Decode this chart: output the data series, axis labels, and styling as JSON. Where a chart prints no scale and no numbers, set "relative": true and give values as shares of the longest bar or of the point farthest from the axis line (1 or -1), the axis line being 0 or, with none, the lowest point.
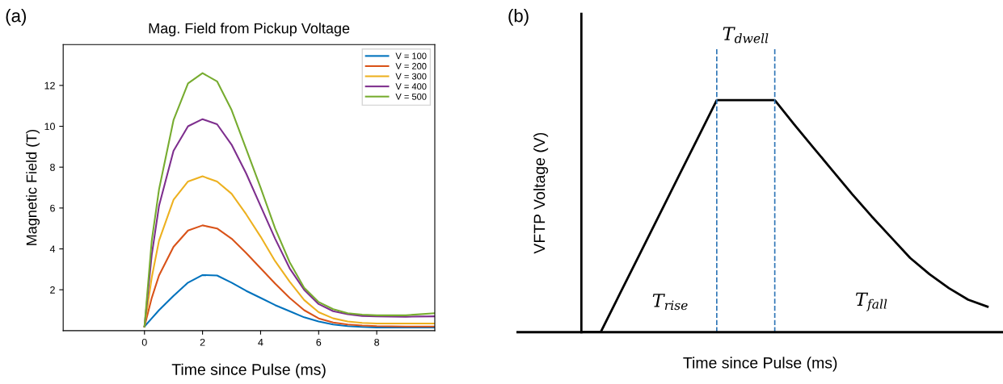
{
  "chart_data": [
    {
      "type": "line",
      "title": "Mag. Field from Pickup Voltage",
      "xlabel": "Time since Pulse (ms)",
      "ylabel": "Magnetic Field (T)",
      "x": [
        0,
        0.25,
        0.5,
        1,
        1.5,
        2,
        2.5,
        3,
        3.5,
        4,
        4.5,
        5,
        5.5,
        6,
        6.5,
        7,
        7.5,
        8,
        9,
        10
      ],
      "series": [
        {
          "name": "V = 100",
          "color": "#0072bd",
          "values": [
            0.2,
            0.6,
            1.0,
            1.7,
            2.35,
            2.72,
            2.7,
            2.35,
            1.95,
            1.6,
            1.25,
            0.95,
            0.65,
            0.45,
            0.3,
            0.22,
            0.18,
            0.15,
            0.15,
            0.15
          ]
        },
        {
          "name": "V = 200",
          "color": "#d95319",
          "values": [
            0.2,
            1.6,
            2.7,
            4.1,
            4.9,
            5.15,
            5.0,
            4.5,
            3.8,
            3.05,
            2.3,
            1.6,
            1.0,
            0.6,
            0.4,
            0.3,
            0.25,
            0.22,
            0.2,
            0.2
          ]
        },
        {
          "name": "V = 300",
          "color": "#edb120",
          "values": [
            0.2,
            2.6,
            4.4,
            6.4,
            7.3,
            7.55,
            7.3,
            6.7,
            5.7,
            4.6,
            3.4,
            2.4,
            1.5,
            0.9,
            0.6,
            0.45,
            0.38,
            0.35,
            0.35,
            0.35
          ]
        },
        {
          "name": "V = 400",
          "color": "#7e2f8e",
          "values": [
            0.2,
            3.7,
            6.1,
            8.8,
            10.0,
            10.35,
            10.1,
            9.1,
            7.7,
            6.1,
            4.5,
            3.05,
            2.0,
            1.3,
            0.95,
            0.8,
            0.72,
            0.7,
            0.68,
            0.7
          ]
        },
        {
          "name": "V = 500",
          "color": "#77ac30",
          "values": [
            0.2,
            4.4,
            6.9,
            10.3,
            12.1,
            12.6,
            12.2,
            10.8,
            8.9,
            7.0,
            5.0,
            3.35,
            2.1,
            1.4,
            1.05,
            0.85,
            0.78,
            0.75,
            0.75,
            0.85
          ]
        }
      ],
      "xlim": [
        -2.8,
        10
      ],
      "ylim": [
        0,
        14
      ],
      "xticks": [
        0,
        2,
        4,
        6,
        8
      ],
      "yticks": [
        2,
        4,
        6,
        8,
        10,
        12
      ],
      "legend": "top right",
      "grid": false,
      "marker": "none",
      "line_style": "solid",
      "annotations": [
        "(a)"
      ]
    },
    {
      "type": "line",
      "relative": true,
      "xlabel": "Time since Pulse (ms)",
      "ylabel": "VFTP Voltage (V)",
      "categories": [
        null,
        null,
        null,
        null,
        null,
        null,
        null,
        null,
        null,
        null,
        null,
        null,
        null,
        null,
        null,
        null,
        null,
        null,
        null,
        null,
        null,
        null
      ],
      "series": [
        {
          "color": "#000000",
          "values": [
            0,
            0,
            0.167,
            0.333,
            0.5,
            0.667,
            0.833,
            1,
            1,
            1,
            1,
            0.896,
            0.795,
            0.695,
            0.595,
            0.5,
            0.41,
            0.32,
            0.25,
            0.19,
            0.14,
            0.11
          ]
        }
      ],
      "tick_labels": false,
      "grid": false,
      "marker": "none",
      "line_style": "solid",
      "annotations": [
        "(b)",
        "T$_{dwell}$",
        "T$_{rise}$",
        "T$_{fall}$"
      ]
    }
  ]
}
